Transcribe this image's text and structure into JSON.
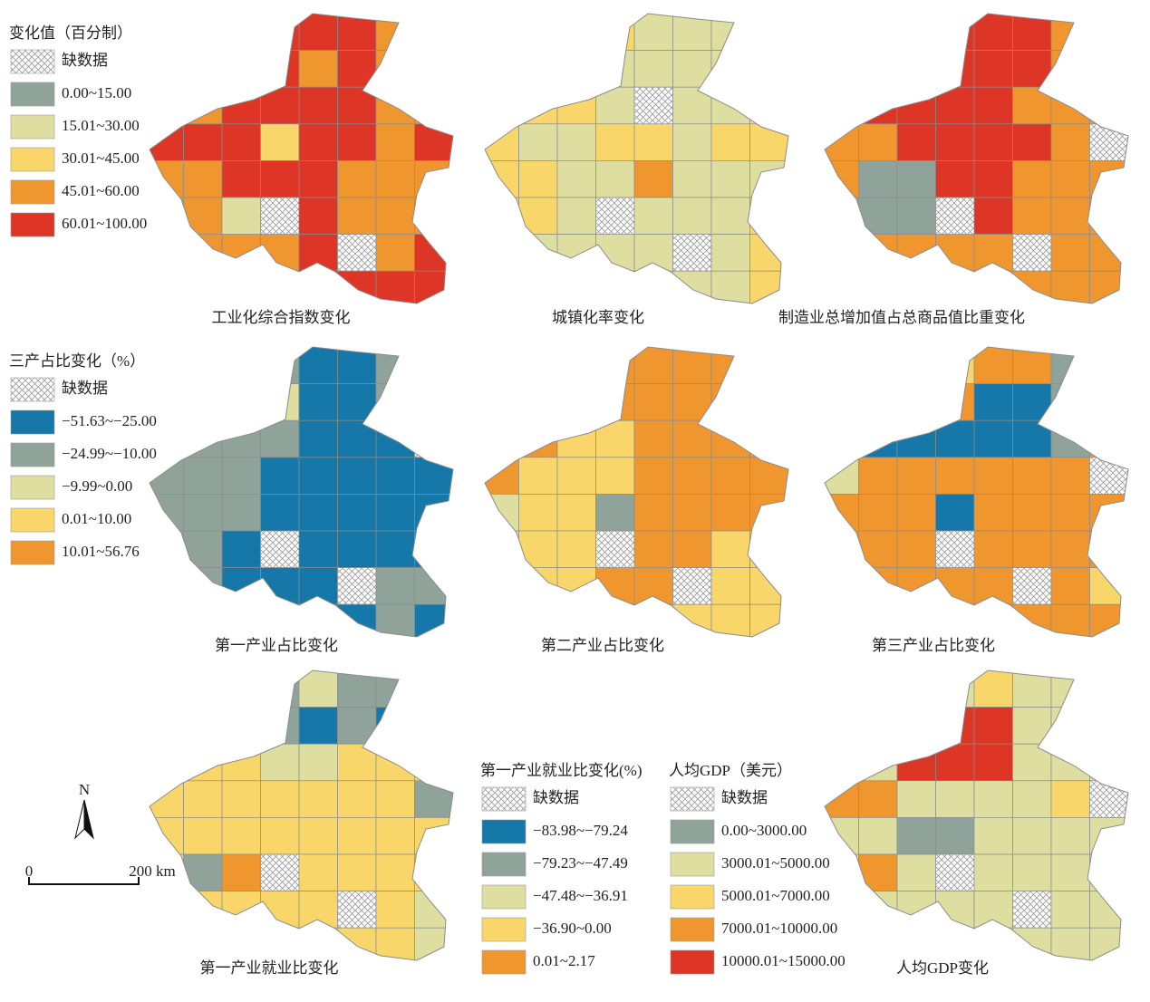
{
  "legends": [
    {
      "title": "变化值（百分制）",
      "items": [
        {
          "label": "缺数据",
          "pattern": "crosshatch"
        },
        {
          "label": "0.00~15.00",
          "color": "#8fa39a"
        },
        {
          "label": "15.01~30.00",
          "color": "#dedea0"
        },
        {
          "label": "30.01~45.00",
          "color": "#f8d66a"
        },
        {
          "label": "45.01~60.00",
          "color": "#f0962e"
        },
        {
          "label": "60.01~100.00",
          "color": "#dd3526"
        }
      ]
    },
    {
      "title": "三产占比变化（%）",
      "items": [
        {
          "label": "缺数据",
          "pattern": "crosshatch"
        },
        {
          "label": "−51.63~−25.00",
          "color": "#1578a8"
        },
        {
          "label": "−24.99~−10.00",
          "color": "#8fa39a"
        },
        {
          "label": "−9.99~0.00",
          "color": "#dedea0"
        },
        {
          "label": "0.01~10.00",
          "color": "#f8d66a"
        },
        {
          "label": "10.01~56.76",
          "color": "#f0962e"
        }
      ]
    },
    {
      "title": "第一产业就业比变化(%)",
      "items": [
        {
          "label": "缺数据",
          "pattern": "crosshatch"
        },
        {
          "label": "−83.98~−79.24",
          "color": "#1578a8"
        },
        {
          "label": "−79.23~−47.49",
          "color": "#8fa39a"
        },
        {
          "label": "−47.48~−36.91",
          "color": "#dedea0"
        },
        {
          "label": "−36.90~0.00",
          "color": "#f8d66a"
        },
        {
          "label": "0.01~2.17",
          "color": "#f0962e"
        }
      ]
    },
    {
      "title": "人均GDP（美元）",
      "items": [
        {
          "label": "缺数据",
          "pattern": "crosshatch"
        },
        {
          "label": "0.00~3000.00",
          "color": "#8fa39a"
        },
        {
          "label": "3000.01~5000.00",
          "color": "#dedea0"
        },
        {
          "label": "5000.01~7000.00",
          "color": "#f8d66a"
        },
        {
          "label": "7000.01~10000.00",
          "color": "#f0962e"
        },
        {
          "label": "10000.01~15000.00",
          "color": "#dd3526"
        }
      ]
    }
  ],
  "maps": [
    {
      "caption": "工业化综合指数变化",
      "legend": 0
    },
    {
      "caption": "城镇化率变化",
      "legend": 0
    },
    {
      "caption": "制造业总增加值占总商品值比重变化",
      "legend": 0
    },
    {
      "caption": "第一产业占比变化",
      "legend": 1
    },
    {
      "caption": "第二产业占比变化",
      "legend": 1
    },
    {
      "caption": "第三产业占比变化",
      "legend": 1
    },
    {
      "caption": "第一产业就业比变化",
      "legend": 2
    },
    {
      "caption": "人均GDP变化",
      "legend": 3
    }
  ],
  "north": "N",
  "scale": [
    "0",
    "200 km"
  ]
}
